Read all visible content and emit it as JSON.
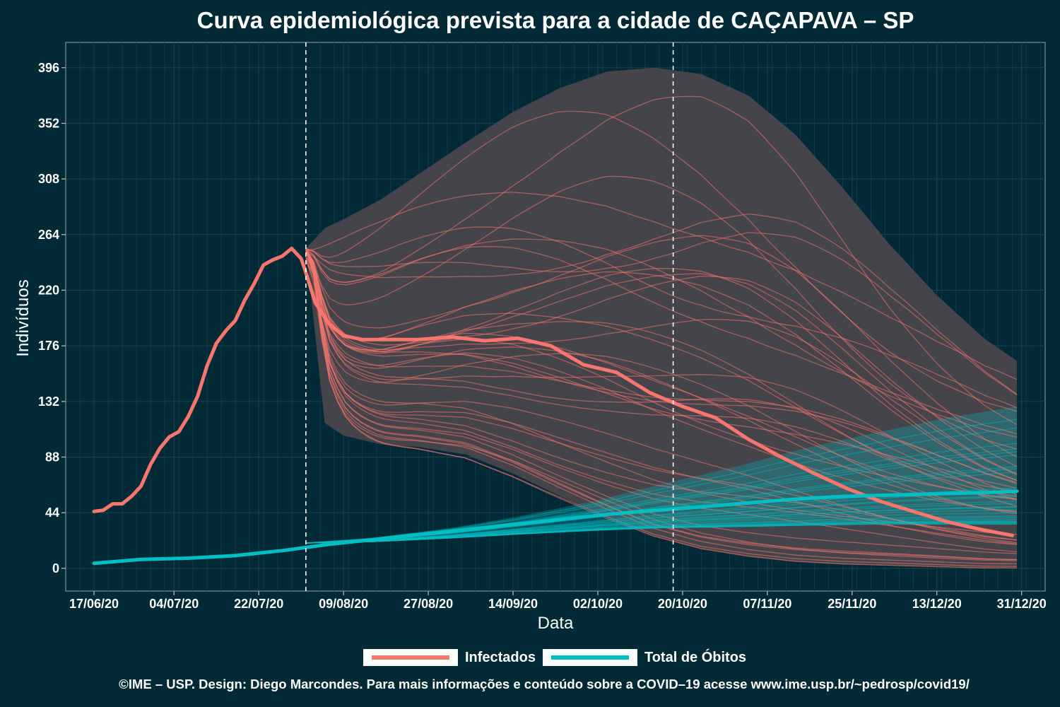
{
  "chart_data": {
    "type": "line",
    "title": "Curva epidemiológica prevista para a cidade de CAÇAPAVA – SP",
    "xlabel": "Data",
    "ylabel": "Indivíduos",
    "x_ticks": [
      "17/06/20",
      "04/07/20",
      "22/07/20",
      "09/08/20",
      "27/08/20",
      "14/09/20",
      "02/10/20",
      "20/10/20",
      "07/11/20",
      "25/11/20",
      "13/12/20",
      "31/12/20"
    ],
    "y_ticks": [
      0,
      44,
      88,
      132,
      176,
      220,
      264,
      308,
      352,
      396
    ],
    "ylim": [
      -18,
      416
    ],
    "xlim": [
      "2020-06-11",
      "2021-01-05"
    ],
    "grid": true,
    "legend_position": "bottom",
    "vlines": [
      "2020-08-01",
      "2020-10-18"
    ],
    "colors": {
      "background": "#022a36",
      "infectados": "#f8766d",
      "obitos": "#00bfc4",
      "band": "#45444b",
      "vline": "#ffffff"
    },
    "series": [
      {
        "name": "Infectados",
        "x": [
          "2020-06-17",
          "2020-06-19",
          "2020-06-21",
          "2020-06-23",
          "2020-06-25",
          "2020-06-27",
          "2020-06-29",
          "2020-07-01",
          "2020-07-03",
          "2020-07-05",
          "2020-07-07",
          "2020-07-09",
          "2020-07-11",
          "2020-07-13",
          "2020-07-15",
          "2020-07-17",
          "2020-07-19",
          "2020-07-21",
          "2020-07-23",
          "2020-07-25",
          "2020-07-27",
          "2020-07-29",
          "2020-07-31",
          "2020-08-01",
          "2020-08-03",
          "2020-08-06",
          "2020-08-09",
          "2020-08-13",
          "2020-08-18",
          "2020-08-25",
          "2020-09-01",
          "2020-09-08",
          "2020-09-15",
          "2020-09-22",
          "2020-09-29",
          "2020-10-06",
          "2020-10-13",
          "2020-10-20",
          "2020-10-27",
          "2020-11-03",
          "2020-11-10",
          "2020-11-17",
          "2020-11-24",
          "2020-12-01",
          "2020-12-08",
          "2020-12-15",
          "2020-12-22",
          "2020-12-29"
        ],
        "values": [
          45,
          46,
          51,
          51,
          57,
          65,
          82,
          95,
          104,
          108,
          120,
          136,
          160,
          178,
          188,
          196,
          212,
          225,
          240,
          244,
          247,
          253,
          245,
          234,
          210,
          193,
          184,
          181,
          181,
          181,
          183,
          180,
          182,
          176,
          161,
          155,
          139,
          128,
          119,
          102,
          88,
          75,
          63,
          53,
          45,
          37,
          31,
          26
        ]
      },
      {
        "name": "Total de Óbitos",
        "x": [
          "2020-06-17",
          "2020-06-27",
          "2020-07-07",
          "2020-07-17",
          "2020-07-27",
          "2020-08-06",
          "2020-08-16",
          "2020-08-26",
          "2020-09-05",
          "2020-09-15",
          "2020-09-25",
          "2020-10-05",
          "2020-10-15",
          "2020-10-25",
          "2020-11-04",
          "2020-11-14",
          "2020-11-24",
          "2020-12-04",
          "2020-12-14",
          "2020-12-24",
          "2020-12-30"
        ],
        "values": [
          4,
          7,
          8,
          10,
          14,
          19,
          23,
          27,
          31,
          35,
          39,
          43,
          46,
          49,
          52,
          55,
          57,
          58,
          59,
          60,
          61
        ]
      }
    ],
    "projections": {
      "infectados_band": {
        "x": [
          "2020-08-01",
          "2020-08-05",
          "2020-08-09",
          "2020-08-17",
          "2020-08-25",
          "2020-09-04",
          "2020-09-14",
          "2020-09-24",
          "2020-10-04",
          "2020-10-14",
          "2020-10-24",
          "2020-11-03",
          "2020-11-13",
          "2020-11-23",
          "2020-12-03",
          "2020-12-13",
          "2020-12-23",
          "2020-12-30"
        ],
        "upper": [
          253,
          269,
          276,
          292,
          312,
          337,
          361,
          380,
          393,
          396,
          391,
          374,
          343,
          301,
          256,
          216,
          182,
          164
        ],
        "lower": [
          253,
          115,
          105,
          98,
          96,
          90,
          75,
          57,
          40,
          25,
          15,
          9,
          5,
          3,
          2,
          1,
          0,
          0
        ]
      },
      "obitos_band": {
        "x": [
          "2020-08-01",
          "2020-08-15",
          "2020-09-01",
          "2020-09-15",
          "2020-10-01",
          "2020-10-15",
          "2020-11-01",
          "2020-11-15",
          "2020-12-01",
          "2020-12-15",
          "2020-12-30"
        ],
        "upper": [
          20,
          24,
          32,
          41,
          53,
          66,
          81,
          95,
          108,
          119,
          128
        ],
        "lower": [
          20,
          21,
          24,
          27,
          30,
          32,
          33,
          34,
          35,
          35,
          35
        ]
      }
    }
  },
  "legend": {
    "infectados_label": "Infectados",
    "obitos_label": "Total de Óbitos"
  },
  "footer": "©IME – USP. Design: Diego Marcondes. Para mais informações e conteúdo sobre a COVID–19 acesse www.ime.usp.br/~pedrosp/covid19/"
}
